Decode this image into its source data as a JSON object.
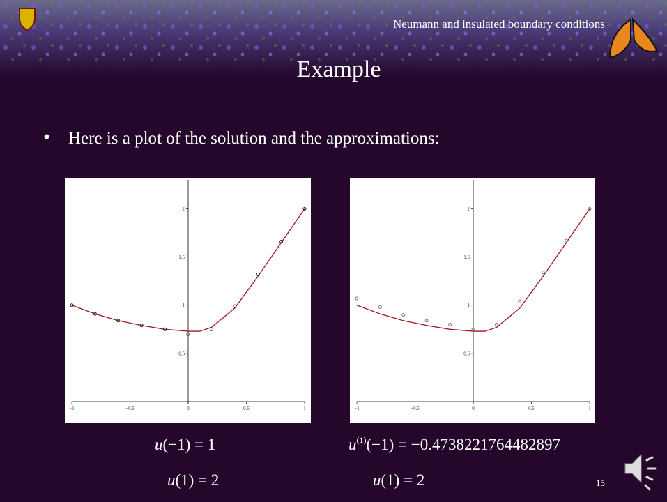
{
  "header": {
    "title": "Neumann and insulated boundary conditions"
  },
  "slide": {
    "title": "Example",
    "bullet": "Here is a plot of the solution and the approximations:",
    "page_number": 15
  },
  "conditions": [
    {
      "lines": [
        {
          "base": "u",
          "rest": "(−1) = 1"
        },
        {
          "base": "u",
          "rest": "(1) = 2"
        }
      ]
    },
    {
      "lines": [
        {
          "base": "u",
          "sup": "(1)",
          "rest": "(−1) = −0.4738221764482897"
        },
        {
          "base": "u",
          "rest": "(1) = 2"
        }
      ]
    }
  ],
  "chart_data": [
    {
      "type": "line",
      "xlim": [
        -1,
        1
      ],
      "ylim": [
        0,
        2.3
      ],
      "xticks": [
        {
          "value": -1,
          "label": "−1"
        },
        {
          "value": -0.5,
          "label": "−0.5"
        },
        0,
        0.5,
        1
      ],
      "yticks": [
        0.5,
        1,
        1.5,
        2
      ],
      "series": [
        {
          "type": "line",
          "color": "#a3161c",
          "x": [
            -1,
            -0.8,
            -0.6,
            -0.4,
            -0.2,
            0,
            0.1,
            0.2,
            0.4,
            0.6,
            0.8,
            1
          ],
          "values": [
            1.0,
            0.91,
            0.84,
            0.79,
            0.75,
            0.73,
            0.73,
            0.77,
            0.97,
            1.3,
            1.65,
            2.0
          ]
        },
        {
          "type": "scatter",
          "color": "#222222",
          "x": [
            -1,
            -0.8,
            -0.6,
            -0.4,
            -0.2,
            0,
            0.2,
            0.4,
            0.6,
            0.8,
            1
          ],
          "values": [
            1.0,
            0.91,
            0.84,
            0.79,
            0.75,
            0.7,
            0.75,
            0.99,
            1.32,
            1.66,
            2.0
          ]
        }
      ]
    },
    {
      "type": "line",
      "xlim": [
        -1,
        1
      ],
      "ylim": [
        0,
        2.3
      ],
      "xticks": [
        {
          "value": -1,
          "label": "−1"
        },
        {
          "value": -0.5,
          "label": "−0.5"
        },
        0,
        0.5,
        1
      ],
      "yticks": [
        0.5,
        1,
        1.5,
        2
      ],
      "series": [
        {
          "type": "line",
          "color": "#a3161c",
          "x": [
            -1,
            -0.8,
            -0.6,
            -0.4,
            -0.2,
            0,
            0.1,
            0.2,
            0.4,
            0.6,
            0.8,
            1
          ],
          "values": [
            1.0,
            0.91,
            0.84,
            0.79,
            0.75,
            0.73,
            0.73,
            0.77,
            0.97,
            1.3,
            1.65,
            2.0
          ]
        },
        {
          "type": "scatter",
          "color": "#777777",
          "x": [
            -1,
            -0.8,
            -0.6,
            -0.4,
            -0.2,
            0,
            0.2,
            0.4,
            0.6,
            0.8,
            1
          ],
          "values": [
            1.07,
            0.98,
            0.9,
            0.84,
            0.8,
            0.75,
            0.8,
            1.04,
            1.34,
            1.67,
            2.0
          ]
        }
      ]
    }
  ]
}
